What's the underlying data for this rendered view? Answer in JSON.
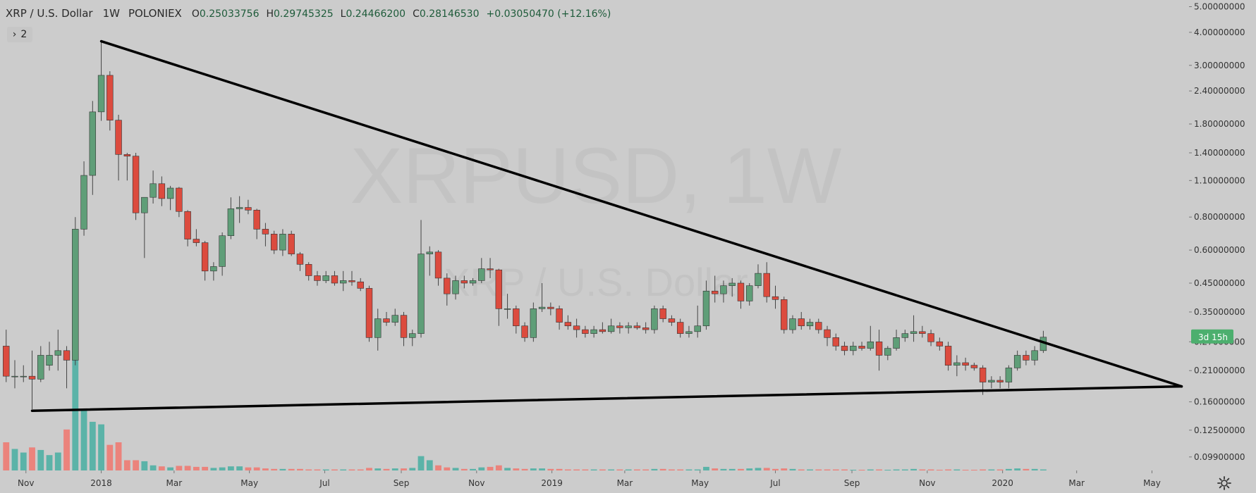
{
  "header": {
    "symbol": "XRP / U.S. Dollar",
    "timeframe": "1W",
    "exchange": "POLONIEX",
    "open_key": "O",
    "open": "0.25033756",
    "high_key": "H",
    "high": "0.29745325",
    "low_key": "L",
    "low": "0.24466200",
    "close_key": "C",
    "close": "0.28146530",
    "change": "+0.03050470 (+12.16%)"
  },
  "indicator_toggle": {
    "chevron": "›",
    "count": "2"
  },
  "watermark": {
    "main": "XRPUSD, 1W",
    "sub": "XRP / U.S. Dollar"
  },
  "countdown_label": "3d 15h",
  "colors": {
    "background": "#cccccc",
    "up": "#5f9e78",
    "down": "#dc4b3e",
    "vol_up": "#4fb0a4",
    "vol_down": "#ee7b73",
    "trendline": "#000000",
    "badge": "#4caf6e"
  },
  "chart_data": {
    "type": "candlestick",
    "scale": "log",
    "price_range": [
      0.088,
      5.3
    ],
    "y_ticks": [
      "5.00000000",
      "4.00000000",
      "3.00000000",
      "2.40000000",
      "1.80000000",
      "1.40000000",
      "1.10000000",
      "0.80000000",
      "0.60000000",
      "0.45000000",
      "0.35000000",
      "0.27000000",
      "0.21000000",
      "0.16000000",
      "0.12500000",
      "0.09900000"
    ],
    "x_ticks": [
      "Nov",
      "2018",
      "Mar",
      "May",
      "Jul",
      "Sep",
      "Nov",
      "2019",
      "Mar",
      "May",
      "Jul",
      "Sep",
      "Nov",
      "2020",
      "Mar",
      "May"
    ],
    "x_tick_dates": [
      "2017-11-01",
      "2018-01-01",
      "2018-03-01",
      "2018-05-01",
      "2018-07-01",
      "2018-09-01",
      "2018-11-01",
      "2019-01-01",
      "2019-03-01",
      "2019-05-01",
      "2019-07-01",
      "2019-09-01",
      "2019-11-01",
      "2020-01-01",
      "2020-03-01",
      "2020-05-01"
    ],
    "x_range": [
      "2017-10-11",
      "2020-05-31"
    ],
    "series": [
      {
        "date": "2017-10-16",
        "o": 0.26,
        "h": 0.3,
        "l": 0.19,
        "c": 0.2,
        "v": 0.55
      },
      {
        "date": "2017-10-23",
        "o": 0.2,
        "h": 0.23,
        "l": 0.18,
        "c": 0.2,
        "v": 0.42
      },
      {
        "date": "2017-10-30",
        "o": 0.2,
        "h": 0.22,
        "l": 0.19,
        "c": 0.2,
        "v": 0.35
      },
      {
        "date": "2017-11-06",
        "o": 0.2,
        "h": 0.25,
        "l": 0.15,
        "c": 0.195,
        "v": 0.45
      },
      {
        "date": "2017-11-13",
        "o": 0.195,
        "h": 0.26,
        "l": 0.19,
        "c": 0.24,
        "v": 0.4
      },
      {
        "date": "2017-11-20",
        "o": 0.22,
        "h": 0.27,
        "l": 0.21,
        "c": 0.24,
        "v": 0.3
      },
      {
        "date": "2017-11-27",
        "o": 0.24,
        "h": 0.3,
        "l": 0.21,
        "c": 0.25,
        "v": 0.35
      },
      {
        "date": "2017-12-04",
        "o": 0.25,
        "h": 0.26,
        "l": 0.18,
        "c": 0.23,
        "v": 0.8
      },
      {
        "date": "2017-12-11",
        "o": 0.23,
        "h": 0.8,
        "l": 0.22,
        "c": 0.72,
        "v": 2.2
      },
      {
        "date": "2017-12-18",
        "o": 0.72,
        "h": 1.3,
        "l": 0.68,
        "c": 1.15,
        "v": 1.2
      },
      {
        "date": "2017-12-25",
        "o": 1.15,
        "h": 2.2,
        "l": 0.97,
        "c": 2.0,
        "v": 0.95
      },
      {
        "date": "2018-01-01",
        "o": 2.0,
        "h": 3.7,
        "l": 1.85,
        "c": 2.75,
        "v": 0.9
      },
      {
        "date": "2018-01-08",
        "o": 2.75,
        "h": 2.85,
        "l": 1.7,
        "c": 1.86,
        "v": 0.5
      },
      {
        "date": "2018-01-15",
        "o": 1.86,
        "h": 1.95,
        "l": 1.1,
        "c": 1.38,
        "v": 0.55
      },
      {
        "date": "2018-01-22",
        "o": 1.38,
        "h": 1.4,
        "l": 1.1,
        "c": 1.36,
        "v": 0.2
      },
      {
        "date": "2018-01-29",
        "o": 1.36,
        "h": 1.4,
        "l": 0.78,
        "c": 0.83,
        "v": 0.2
      },
      {
        "date": "2018-02-05",
        "o": 0.83,
        "h": 0.95,
        "l": 0.56,
        "c": 0.95,
        "v": 0.18
      },
      {
        "date": "2018-02-12",
        "o": 0.95,
        "h": 1.2,
        "l": 0.9,
        "c": 1.07,
        "v": 0.1
      },
      {
        "date": "2018-02-19",
        "o": 1.07,
        "h": 1.14,
        "l": 0.88,
        "c": 0.94,
        "v": 0.08
      },
      {
        "date": "2018-02-26",
        "o": 0.94,
        "h": 1.05,
        "l": 0.85,
        "c": 1.03,
        "v": 0.06
      },
      {
        "date": "2018-03-05",
        "o": 1.03,
        "h": 1.04,
        "l": 0.8,
        "c": 0.84,
        "v": 0.09
      },
      {
        "date": "2018-03-12",
        "o": 0.84,
        "h": 0.85,
        "l": 0.62,
        "c": 0.66,
        "v": 0.09
      },
      {
        "date": "2018-03-19",
        "o": 0.66,
        "h": 0.72,
        "l": 0.62,
        "c": 0.64,
        "v": 0.07
      },
      {
        "date": "2018-03-26",
        "o": 0.64,
        "h": 0.65,
        "l": 0.46,
        "c": 0.5,
        "v": 0.07
      },
      {
        "date": "2018-04-02",
        "o": 0.5,
        "h": 0.54,
        "l": 0.46,
        "c": 0.52,
        "v": 0.05
      },
      {
        "date": "2018-04-09",
        "o": 0.52,
        "h": 0.7,
        "l": 0.48,
        "c": 0.68,
        "v": 0.06
      },
      {
        "date": "2018-04-16",
        "o": 0.68,
        "h": 0.95,
        "l": 0.66,
        "c": 0.86,
        "v": 0.08
      },
      {
        "date": "2018-04-23",
        "o": 0.86,
        "h": 0.96,
        "l": 0.76,
        "c": 0.87,
        "v": 0.08
      },
      {
        "date": "2018-04-30",
        "o": 0.87,
        "h": 0.93,
        "l": 0.82,
        "c": 0.85,
        "v": 0.06
      },
      {
        "date": "2018-05-07",
        "o": 0.85,
        "h": 0.86,
        "l": 0.66,
        "c": 0.72,
        "v": 0.06
      },
      {
        "date": "2018-05-14",
        "o": 0.72,
        "h": 0.76,
        "l": 0.62,
        "c": 0.69,
        "v": 0.04
      },
      {
        "date": "2018-05-21",
        "o": 0.69,
        "h": 0.71,
        "l": 0.58,
        "c": 0.6,
        "v": 0.03
      },
      {
        "date": "2018-05-28",
        "o": 0.6,
        "h": 0.72,
        "l": 0.57,
        "c": 0.69,
        "v": 0.03
      },
      {
        "date": "2018-06-04",
        "o": 0.69,
        "h": 0.71,
        "l": 0.57,
        "c": 0.58,
        "v": 0.03
      },
      {
        "date": "2018-06-11",
        "o": 0.58,
        "h": 0.59,
        "l": 0.5,
        "c": 0.53,
        "v": 0.03
      },
      {
        "date": "2018-06-18",
        "o": 0.53,
        "h": 0.54,
        "l": 0.46,
        "c": 0.48,
        "v": 0.02
      },
      {
        "date": "2018-06-25",
        "o": 0.48,
        "h": 0.5,
        "l": 0.44,
        "c": 0.46,
        "v": 0.02
      },
      {
        "date": "2018-07-02",
        "o": 0.46,
        "h": 0.5,
        "l": 0.45,
        "c": 0.48,
        "v": 0.02
      },
      {
        "date": "2018-07-09",
        "o": 0.48,
        "h": 0.5,
        "l": 0.44,
        "c": 0.45,
        "v": 0.02
      },
      {
        "date": "2018-07-16",
        "o": 0.45,
        "h": 0.5,
        "l": 0.42,
        "c": 0.46,
        "v": 0.02
      },
      {
        "date": "2018-07-23",
        "o": 0.46,
        "h": 0.5,
        "l": 0.44,
        "c": 0.455,
        "v": 0.02
      },
      {
        "date": "2018-07-30",
        "o": 0.455,
        "h": 0.47,
        "l": 0.42,
        "c": 0.43,
        "v": 0.02
      },
      {
        "date": "2018-08-06",
        "o": 0.43,
        "h": 0.44,
        "l": 0.27,
        "c": 0.28,
        "v": 0.05
      },
      {
        "date": "2018-08-13",
        "o": 0.28,
        "h": 0.36,
        "l": 0.25,
        "c": 0.33,
        "v": 0.04
      },
      {
        "date": "2018-08-20",
        "o": 0.33,
        "h": 0.35,
        "l": 0.31,
        "c": 0.32,
        "v": 0.03
      },
      {
        "date": "2018-08-27",
        "o": 0.32,
        "h": 0.36,
        "l": 0.31,
        "c": 0.34,
        "v": 0.04
      },
      {
        "date": "2018-09-03",
        "o": 0.34,
        "h": 0.35,
        "l": 0.26,
        "c": 0.28,
        "v": 0.04
      },
      {
        "date": "2018-09-10",
        "o": 0.28,
        "h": 0.3,
        "l": 0.26,
        "c": 0.29,
        "v": 0.05
      },
      {
        "date": "2018-09-17",
        "o": 0.29,
        "h": 0.78,
        "l": 0.28,
        "c": 0.58,
        "v": 0.28
      },
      {
        "date": "2018-09-24",
        "o": 0.58,
        "h": 0.62,
        "l": 0.48,
        "c": 0.59,
        "v": 0.2
      },
      {
        "date": "2018-10-01",
        "o": 0.59,
        "h": 0.6,
        "l": 0.44,
        "c": 0.47,
        "v": 0.1
      },
      {
        "date": "2018-10-08",
        "o": 0.47,
        "h": 0.49,
        "l": 0.37,
        "c": 0.41,
        "v": 0.06
      },
      {
        "date": "2018-10-15",
        "o": 0.41,
        "h": 0.48,
        "l": 0.39,
        "c": 0.46,
        "v": 0.05
      },
      {
        "date": "2018-10-22",
        "o": 0.46,
        "h": 0.48,
        "l": 0.43,
        "c": 0.45,
        "v": 0.03
      },
      {
        "date": "2018-10-29",
        "o": 0.45,
        "h": 0.47,
        "l": 0.44,
        "c": 0.46,
        "v": 0.03
      },
      {
        "date": "2018-11-05",
        "o": 0.46,
        "h": 0.56,
        "l": 0.45,
        "c": 0.51,
        "v": 0.06
      },
      {
        "date": "2018-11-12",
        "o": 0.51,
        "h": 0.56,
        "l": 0.47,
        "c": 0.505,
        "v": 0.07
      },
      {
        "date": "2018-11-19",
        "o": 0.505,
        "h": 0.51,
        "l": 0.31,
        "c": 0.36,
        "v": 0.1
      },
      {
        "date": "2018-11-26",
        "o": 0.36,
        "h": 0.41,
        "l": 0.33,
        "c": 0.36,
        "v": 0.05
      },
      {
        "date": "2018-12-03",
        "o": 0.36,
        "h": 0.37,
        "l": 0.29,
        "c": 0.31,
        "v": 0.04
      },
      {
        "date": "2018-12-10",
        "o": 0.31,
        "h": 0.32,
        "l": 0.27,
        "c": 0.28,
        "v": 0.03
      },
      {
        "date": "2018-12-17",
        "o": 0.28,
        "h": 0.38,
        "l": 0.27,
        "c": 0.36,
        "v": 0.04
      },
      {
        "date": "2018-12-24",
        "o": 0.36,
        "h": 0.45,
        "l": 0.35,
        "c": 0.365,
        "v": 0.04
      },
      {
        "date": "2018-12-31",
        "o": 0.365,
        "h": 0.38,
        "l": 0.34,
        "c": 0.36,
        "v": 0.03
      },
      {
        "date": "2019-01-07",
        "o": 0.36,
        "h": 0.37,
        "l": 0.3,
        "c": 0.32,
        "v": 0.03
      },
      {
        "date": "2019-01-14",
        "o": 0.32,
        "h": 0.34,
        "l": 0.3,
        "c": 0.31,
        "v": 0.02
      },
      {
        "date": "2019-01-21",
        "o": 0.31,
        "h": 0.33,
        "l": 0.28,
        "c": 0.3,
        "v": 0.02
      },
      {
        "date": "2019-01-28",
        "o": 0.3,
        "h": 0.31,
        "l": 0.28,
        "c": 0.29,
        "v": 0.02
      },
      {
        "date": "2019-02-04",
        "o": 0.29,
        "h": 0.31,
        "l": 0.28,
        "c": 0.3,
        "v": 0.02
      },
      {
        "date": "2019-02-11",
        "o": 0.3,
        "h": 0.32,
        "l": 0.29,
        "c": 0.295,
        "v": 0.02
      },
      {
        "date": "2019-02-18",
        "o": 0.295,
        "h": 0.33,
        "l": 0.29,
        "c": 0.31,
        "v": 0.02
      },
      {
        "date": "2019-02-25",
        "o": 0.31,
        "h": 0.32,
        "l": 0.29,
        "c": 0.305,
        "v": 0.02
      },
      {
        "date": "2019-03-04",
        "o": 0.305,
        "h": 0.32,
        "l": 0.29,
        "c": 0.31,
        "v": 0.02
      },
      {
        "date": "2019-03-11",
        "o": 0.31,
        "h": 0.32,
        "l": 0.3,
        "c": 0.305,
        "v": 0.02
      },
      {
        "date": "2019-03-18",
        "o": 0.305,
        "h": 0.32,
        "l": 0.29,
        "c": 0.3,
        "v": 0.02
      },
      {
        "date": "2019-03-25",
        "o": 0.3,
        "h": 0.37,
        "l": 0.29,
        "c": 0.36,
        "v": 0.03
      },
      {
        "date": "2019-04-01",
        "o": 0.36,
        "h": 0.37,
        "l": 0.32,
        "c": 0.33,
        "v": 0.03
      },
      {
        "date": "2019-04-08",
        "o": 0.33,
        "h": 0.34,
        "l": 0.31,
        "c": 0.32,
        "v": 0.02
      },
      {
        "date": "2019-04-15",
        "o": 0.32,
        "h": 0.33,
        "l": 0.28,
        "c": 0.29,
        "v": 0.02
      },
      {
        "date": "2019-04-22",
        "o": 0.29,
        "h": 0.31,
        "l": 0.28,
        "c": 0.295,
        "v": 0.02
      },
      {
        "date": "2019-04-29",
        "o": 0.295,
        "h": 0.37,
        "l": 0.28,
        "c": 0.31,
        "v": 0.02
      },
      {
        "date": "2019-05-06",
        "o": 0.31,
        "h": 0.46,
        "l": 0.3,
        "c": 0.42,
        "v": 0.07
      },
      {
        "date": "2019-05-13",
        "o": 0.42,
        "h": 0.48,
        "l": 0.38,
        "c": 0.41,
        "v": 0.04
      },
      {
        "date": "2019-05-20",
        "o": 0.41,
        "h": 0.46,
        "l": 0.38,
        "c": 0.44,
        "v": 0.03
      },
      {
        "date": "2019-05-27",
        "o": 0.44,
        "h": 0.47,
        "l": 0.4,
        "c": 0.45,
        "v": 0.03
      },
      {
        "date": "2019-06-03",
        "o": 0.45,
        "h": 0.46,
        "l": 0.36,
        "c": 0.385,
        "v": 0.03
      },
      {
        "date": "2019-06-10",
        "o": 0.385,
        "h": 0.45,
        "l": 0.37,
        "c": 0.44,
        "v": 0.04
      },
      {
        "date": "2019-06-17",
        "o": 0.44,
        "h": 0.53,
        "l": 0.43,
        "c": 0.49,
        "v": 0.05
      },
      {
        "date": "2019-06-24",
        "o": 0.49,
        "h": 0.54,
        "l": 0.38,
        "c": 0.4,
        "v": 0.05
      },
      {
        "date": "2019-07-01",
        "o": 0.4,
        "h": 0.44,
        "l": 0.36,
        "c": 0.39,
        "v": 0.03
      },
      {
        "date": "2019-07-08",
        "o": 0.39,
        "h": 0.4,
        "l": 0.29,
        "c": 0.3,
        "v": 0.04
      },
      {
        "date": "2019-07-15",
        "o": 0.3,
        "h": 0.34,
        "l": 0.29,
        "c": 0.33,
        "v": 0.03
      },
      {
        "date": "2019-07-22",
        "o": 0.33,
        "h": 0.35,
        "l": 0.3,
        "c": 0.31,
        "v": 0.02
      },
      {
        "date": "2019-07-29",
        "o": 0.31,
        "h": 0.33,
        "l": 0.3,
        "c": 0.32,
        "v": 0.02
      },
      {
        "date": "2019-08-05",
        "o": 0.32,
        "h": 0.33,
        "l": 0.29,
        "c": 0.3,
        "v": 0.02
      },
      {
        "date": "2019-08-12",
        "o": 0.3,
        "h": 0.31,
        "l": 0.26,
        "c": 0.28,
        "v": 0.02
      },
      {
        "date": "2019-08-19",
        "o": 0.28,
        "h": 0.29,
        "l": 0.25,
        "c": 0.26,
        "v": 0.02
      },
      {
        "date": "2019-08-26",
        "o": 0.26,
        "h": 0.27,
        "l": 0.24,
        "c": 0.25,
        "v": 0.02
      },
      {
        "date": "2019-09-02",
        "o": 0.25,
        "h": 0.27,
        "l": 0.24,
        "c": 0.26,
        "v": 0.01
      },
      {
        "date": "2019-09-09",
        "o": 0.26,
        "h": 0.27,
        "l": 0.25,
        "c": 0.255,
        "v": 0.01
      },
      {
        "date": "2019-09-16",
        "o": 0.255,
        "h": 0.31,
        "l": 0.25,
        "c": 0.27,
        "v": 0.02
      },
      {
        "date": "2019-09-23",
        "o": 0.27,
        "h": 0.3,
        "l": 0.21,
        "c": 0.24,
        "v": 0.02
      },
      {
        "date": "2019-09-30",
        "o": 0.24,
        "h": 0.26,
        "l": 0.23,
        "c": 0.255,
        "v": 0.01
      },
      {
        "date": "2019-10-07",
        "o": 0.255,
        "h": 0.3,
        "l": 0.25,
        "c": 0.28,
        "v": 0.02
      },
      {
        "date": "2019-10-14",
        "o": 0.28,
        "h": 0.3,
        "l": 0.27,
        "c": 0.29,
        "v": 0.02
      },
      {
        "date": "2019-10-21",
        "o": 0.29,
        "h": 0.34,
        "l": 0.27,
        "c": 0.295,
        "v": 0.03
      },
      {
        "date": "2019-10-28",
        "o": 0.295,
        "h": 0.31,
        "l": 0.28,
        "c": 0.29,
        "v": 0.02
      },
      {
        "date": "2019-11-04",
        "o": 0.29,
        "h": 0.3,
        "l": 0.26,
        "c": 0.27,
        "v": 0.02
      },
      {
        "date": "2019-11-11",
        "o": 0.27,
        "h": 0.28,
        "l": 0.25,
        "c": 0.26,
        "v": 0.01
      },
      {
        "date": "2019-11-18",
        "o": 0.26,
        "h": 0.27,
        "l": 0.21,
        "c": 0.22,
        "v": 0.02
      },
      {
        "date": "2019-11-25",
        "o": 0.22,
        "h": 0.24,
        "l": 0.2,
        "c": 0.225,
        "v": 0.02
      },
      {
        "date": "2019-12-02",
        "o": 0.225,
        "h": 0.235,
        "l": 0.21,
        "c": 0.22,
        "v": 0.01
      },
      {
        "date": "2019-12-09",
        "o": 0.22,
        "h": 0.225,
        "l": 0.21,
        "c": 0.215,
        "v": 0.01
      },
      {
        "date": "2019-12-16",
        "o": 0.215,
        "h": 0.22,
        "l": 0.17,
        "c": 0.19,
        "v": 0.02
      },
      {
        "date": "2019-12-23",
        "o": 0.19,
        "h": 0.2,
        "l": 0.18,
        "c": 0.193,
        "v": 0.02
      },
      {
        "date": "2019-12-30",
        "o": 0.193,
        "h": 0.2,
        "l": 0.18,
        "c": 0.19,
        "v": 0.02
      },
      {
        "date": "2020-01-06",
        "o": 0.19,
        "h": 0.22,
        "l": 0.18,
        "c": 0.215,
        "v": 0.03
      },
      {
        "date": "2020-01-13",
        "o": 0.215,
        "h": 0.25,
        "l": 0.21,
        "c": 0.24,
        "v": 0.04
      },
      {
        "date": "2020-01-20",
        "o": 0.24,
        "h": 0.25,
        "l": 0.22,
        "c": 0.23,
        "v": 0.03
      },
      {
        "date": "2020-01-27",
        "o": 0.23,
        "h": 0.26,
        "l": 0.22,
        "c": 0.25,
        "v": 0.03
      },
      {
        "date": "2020-02-03",
        "o": 0.25,
        "h": 0.297,
        "l": 0.245,
        "c": 0.281,
        "v": 0.02
      }
    ],
    "trendlines": [
      {
        "from": {
          "date": "2018-01-01",
          "price": 3.7
        },
        "to": {
          "date": "2020-05-25",
          "price": 0.183
        }
      },
      {
        "from": {
          "date": "2017-11-06",
          "price": 0.148
        },
        "to": {
          "date": "2020-05-25",
          "price": 0.183
        }
      }
    ]
  }
}
